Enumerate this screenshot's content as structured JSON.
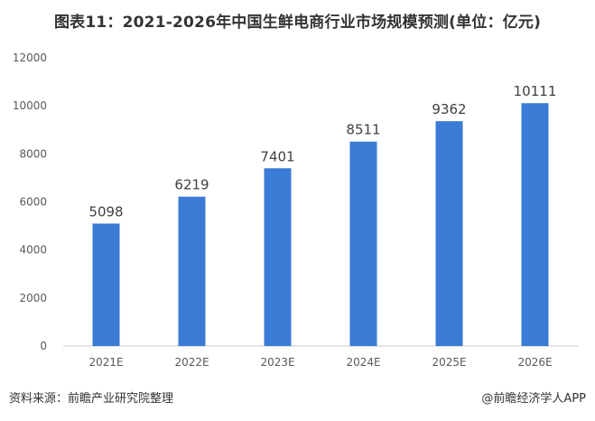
{
  "title": "图表11：2021-2026年中国生鲜电商行业市场规模预测(单位：亿元)",
  "source": "资料来源：前瞻产业研究院整理",
  "credit": "@前瞻经济学人APP",
  "colors": {
    "bar": "#3A7BD5",
    "axis": "#C9C9C9",
    "text": "#333333"
  },
  "chart_data": {
    "type": "bar",
    "title": "图表11：2021-2026年中国生鲜电商行业市场规模预测(单位：亿元)",
    "xlabel": "",
    "ylabel": "",
    "categories": [
      "2021E",
      "2022E",
      "2023E",
      "2024E",
      "2025E",
      "2026E"
    ],
    "values": [
      5098,
      6219,
      7401,
      8511,
      9362,
      10111
    ],
    "ylim": [
      0,
      12000
    ],
    "yticks": [
      0,
      2000,
      4000,
      6000,
      8000,
      10000,
      12000
    ],
    "grid": false,
    "data_labels": true
  }
}
